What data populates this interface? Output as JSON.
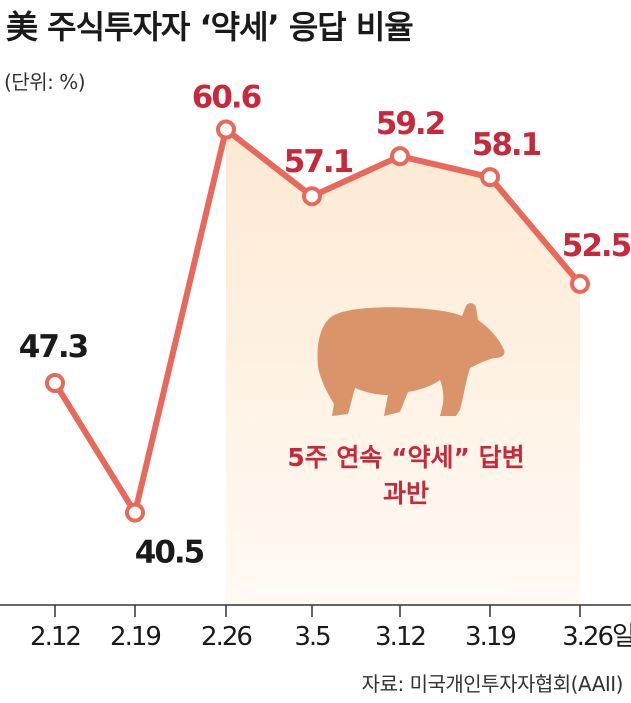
{
  "header": {
    "title": "美 주식투자자 ‘약세’ 응답 비율",
    "unit": "(단위: %)"
  },
  "annotation": {
    "line1": "5주 연속 “약세” 답변",
    "line2": "과반"
  },
  "source": "자료: 미국개인투자자협회(AAII)",
  "x_suffix": "일",
  "colors": {
    "line": "#e8685a",
    "highlight_label": "#c8283a",
    "normal_label": "#1a1a1a",
    "bear": "#d9946a",
    "band_top": "#fde9d2",
    "band_bottom": "#fffaf4"
  },
  "chart_data": {
    "type": "line",
    "categories": [
      "2.12",
      "2.19",
      "2.26",
      "3.5",
      "3.12",
      "3.19",
      "3.26"
    ],
    "values": [
      47.3,
      40.5,
      60.6,
      57.1,
      59.2,
      58.1,
      52.5
    ],
    "value_labels": [
      "47.3",
      "40.5",
      "60.6",
      "57.1",
      "59.2",
      "58.1",
      "52.5"
    ],
    "highlight_from_index": 2,
    "title": "美 주식투자자 ‘약세’ 응답 비율",
    "xlabel": "",
    "ylabel": "",
    "grid": false,
    "legend": "none"
  }
}
